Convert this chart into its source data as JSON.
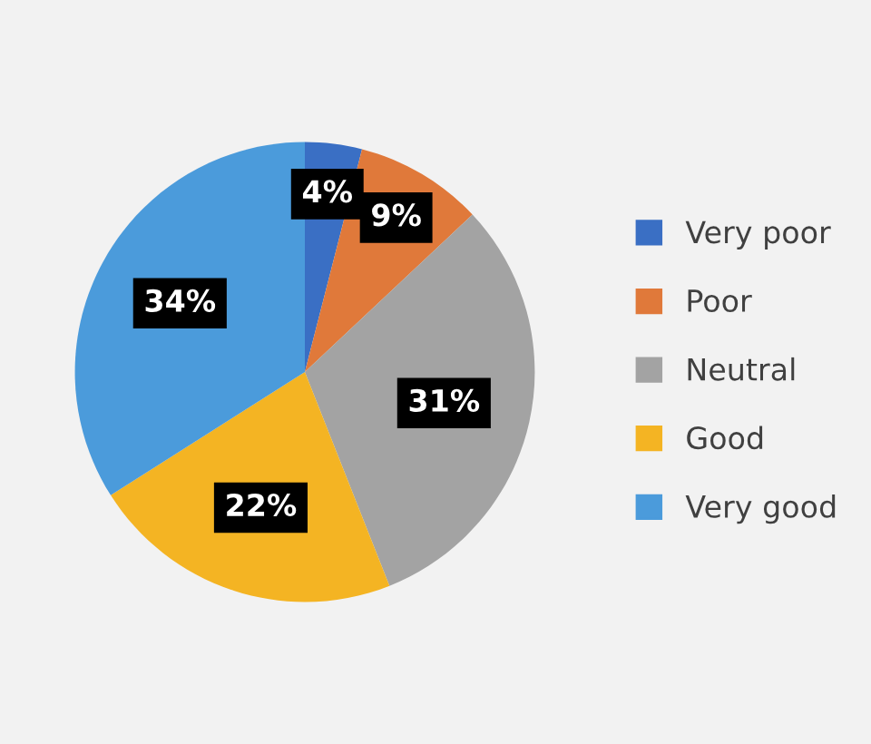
{
  "chart_data": {
    "type": "pie",
    "categories": [
      "Very poor",
      "Poor",
      "Neutral",
      "Good",
      "Very good"
    ],
    "values": [
      4,
      9,
      31,
      22,
      34
    ],
    "colors": [
      "#3a6fc4",
      "#e0793a",
      "#a3a3a3",
      "#f4b423",
      "#4b9bdb"
    ],
    "value_labels": [
      "4%",
      "9%",
      "31%",
      "22%",
      "34%"
    ],
    "legend": "right"
  }
}
